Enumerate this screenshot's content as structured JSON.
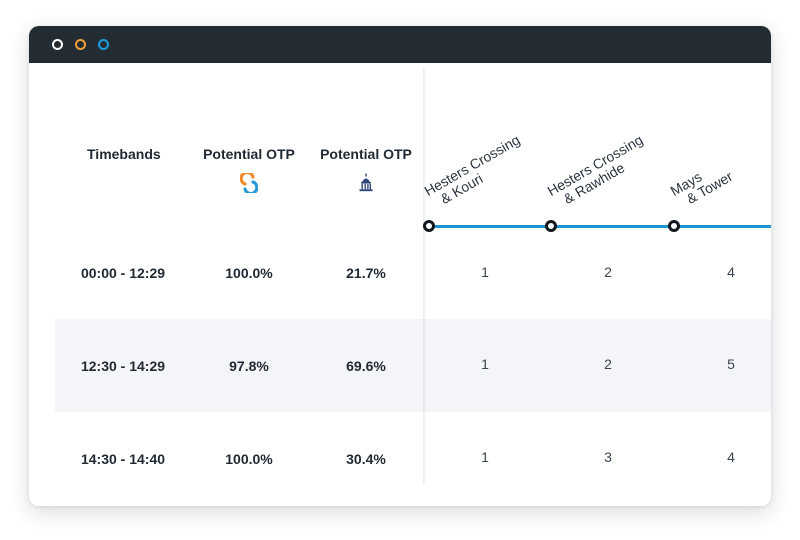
{
  "window": {
    "dots": [
      {
        "name": "close",
        "color": "#ffffff"
      },
      {
        "name": "minimize",
        "color": "#f4a03a"
      },
      {
        "name": "maximize",
        "color": "#1ea0dc"
      }
    ]
  },
  "table": {
    "headers": {
      "timebands": "Timebands",
      "potential_otp_1": "Potential OTP",
      "potential_otp_2": "Potential OTP"
    },
    "icons": {
      "otp_1": "swiftly-logo-icon",
      "otp_2": "capitol-building-icon"
    },
    "rows": [
      {
        "timeband": "00:00 - 12:29",
        "otp1": "100.0%",
        "otp2": "21.7%",
        "counts": [
          "1",
          "2",
          "4"
        ]
      },
      {
        "timeband": "12:30 - 14:29",
        "otp1": "97.8%",
        "otp2": "69.6%",
        "counts": [
          "1",
          "2",
          "5"
        ]
      },
      {
        "timeband": "14:30 - 14:40",
        "otp1": "100.0%",
        "otp2": "30.4%",
        "counts": [
          "1",
          "3",
          "4"
        ]
      }
    ]
  },
  "route": {
    "line_color": "#1b96d2",
    "stops": [
      {
        "line1": "Hesters Crossing",
        "line2": "& Kouri"
      },
      {
        "line1": "Hesters Crossing",
        "line2": "& Rawhide"
      },
      {
        "line1": "Mays",
        "line2": "& Tower"
      }
    ]
  }
}
